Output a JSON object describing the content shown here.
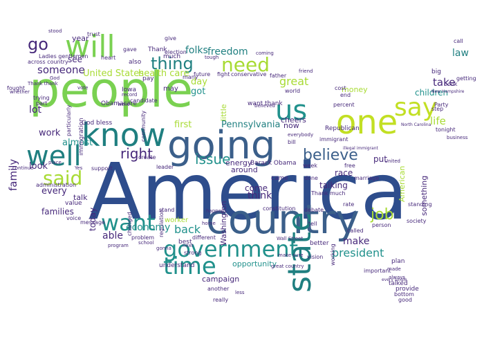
{
  "palette": {
    "dark_blue": "#2e4d8c",
    "mid_blue": "#3b5f8a",
    "teal": "#21918c",
    "teal_dark": "#1f7f80",
    "green": "#7ad151",
    "lime": "#c2df23",
    "yellow_green": "#a8db34",
    "purple": "#46287a",
    "navy": "#3a3f75"
  },
  "words": {
    "america": "America",
    "people": "people",
    "country": "country",
    "going": "going",
    "know": "know",
    "will": "will",
    "well": "well",
    "one": "one",
    "say": "say",
    "us": "us",
    "government": "government",
    "time": "time",
    "state": "state",
    "said": "said",
    "want": "want",
    "need": "need",
    "thing": "thing",
    "go": "go",
    "believe": "believe",
    "job": "job",
    "right": "right",
    "issue": "issue",
    "freedom": "freedom",
    "folks": "folks",
    "health_care": "health care",
    "united_states": "United States",
    "someone": "someone",
    "president": "president",
    "great": "great",
    "family": "family",
    "children": "children",
    "take": "take",
    "life": "life",
    "law": "law",
    "lot": "lot",
    "work": "work",
    "almost": "almost",
    "see": "see",
    "year": "year",
    "every": "every",
    "look": "look",
    "families": "families",
    "economy": "economy",
    "back": "back",
    "able": "able",
    "talk": "talk",
    "today": "today",
    "make": "make",
    "come": "come",
    "think": "think",
    "pennsylvania": "Pennsylvania",
    "washington": "Washington",
    "campaign": "campaign",
    "opportunity": "opportunity",
    "energy": "energy",
    "around": "around",
    "first": "first",
    "day": "day",
    "got": "got",
    "cheers": "cheers",
    "money": "money",
    "now": "now",
    "put": "put",
    "race": "race",
    "talking": "talking",
    "something": "something",
    "american": "American",
    "barack_obama": "Barack Obama",
    "came": "came",
    "god_bless": "God bless",
    "also": "also",
    "gave": "gave",
    "give": "give",
    "thank": "Thank",
    "much": "much",
    "may": "may",
    "little": "little",
    "worker": "worker",
    "future": "future",
    "many": "many",
    "heart": "heart",
    "across_country": "across country",
    "ladies_gentlemen": "Ladies gentlemen",
    "stood": "stood",
    "trust": "trust",
    "pay": "pay",
    "iowa": "Iowa",
    "obamacare": "Obamacare",
    "immigration": "immigration",
    "particularly": "particularly",
    "republican": "Republican",
    "want_thank": "want thank",
    "community": "community",
    "plan": "plan",
    "tonight": "tonight",
    "talked": "talked",
    "provide": "provide",
    "bottom": "bottom",
    "good": "good",
    "best": "best",
    "better": "better",
    "vision": "vision",
    "understand": "understand",
    "another": "another",
    "really": "really",
    "strong": "strong",
    "problem": "problem",
    "message": "message",
    "voice": "voice",
    "value": "value",
    "program": "program",
    "school": "school",
    "stand": "stand",
    "changed": "changed",
    "regulation": "regulation",
    "create": "create",
    "leader": "leader",
    "fight": "fight",
    "conservative": "conservative",
    "election": "election",
    "percent": "percent",
    "world": "world",
    "father": "father",
    "friend": "friend",
    "cost": "cost",
    "end": "end",
    "bill": "bill",
    "free": "free",
    "week": "week",
    "done": "done",
    "marriage": "marriage",
    "thank_much": "Thank much",
    "constitution": "constitution",
    "tell": "tell",
    "rate": "rate",
    "important": "important",
    "called": "called",
    "wall_street": "Wall Street",
    "debate": "debate",
    "working": "working",
    "person": "person",
    "standing": "standing",
    "society": "society",
    "step": "step",
    "getting": "getting",
    "business": "business",
    "party": "Party",
    "fought": "fought",
    "trying": "trying",
    "part": "part",
    "thank_thank": "Thank thank",
    "whether": "whether",
    "continue": "continue",
    "administration": "administration",
    "support": "support",
    "country2": "country",
    "candidate": "candidate",
    "record": "record",
    "went": "went",
    "big": "big",
    "book": "book",
    "call": "call",
    "senator": "senator",
    "tax": "tax",
    "nation": "nation",
    "hope": "hope",
    "help": "help",
    "man": "man",
    "two": "two",
    "everybody": "everybody",
    "immigrant": "immigrant",
    "believed": "believed",
    "coming": "coming",
    "place": "place",
    "home": "home",
    "made": "made",
    "member": "member",
    "always": "always",
    "every_single": "every single",
    "new": "new",
    "yes": "Yes",
    "vote": "vote",
    "dream": "dream",
    "tough": "tough",
    "new_hampshire": "New Hampshire",
    "job_creator": "job creator",
    "idea": "idea",
    "god": "God",
    "built": "built",
    "hard": "hard",
    "keep": "keep",
    "town": "town",
    "actually": "actually",
    "gonna": "gonna",
    "next": "next",
    "difference": "different",
    "united": "United",
    "illegal_immigrant": "illegal immigrant",
    "america_great": "great country",
    "less": "less",
    "make_sure": "make sure",
    "generation": "generation",
    "happen": "happen",
    "military": "military",
    "young": "young",
    "whole": "whole",
    "year_ago": "year ago",
    "north_carolina": "North Carolina",
    "grow": "grow",
    "mother": "mother"
  }
}
